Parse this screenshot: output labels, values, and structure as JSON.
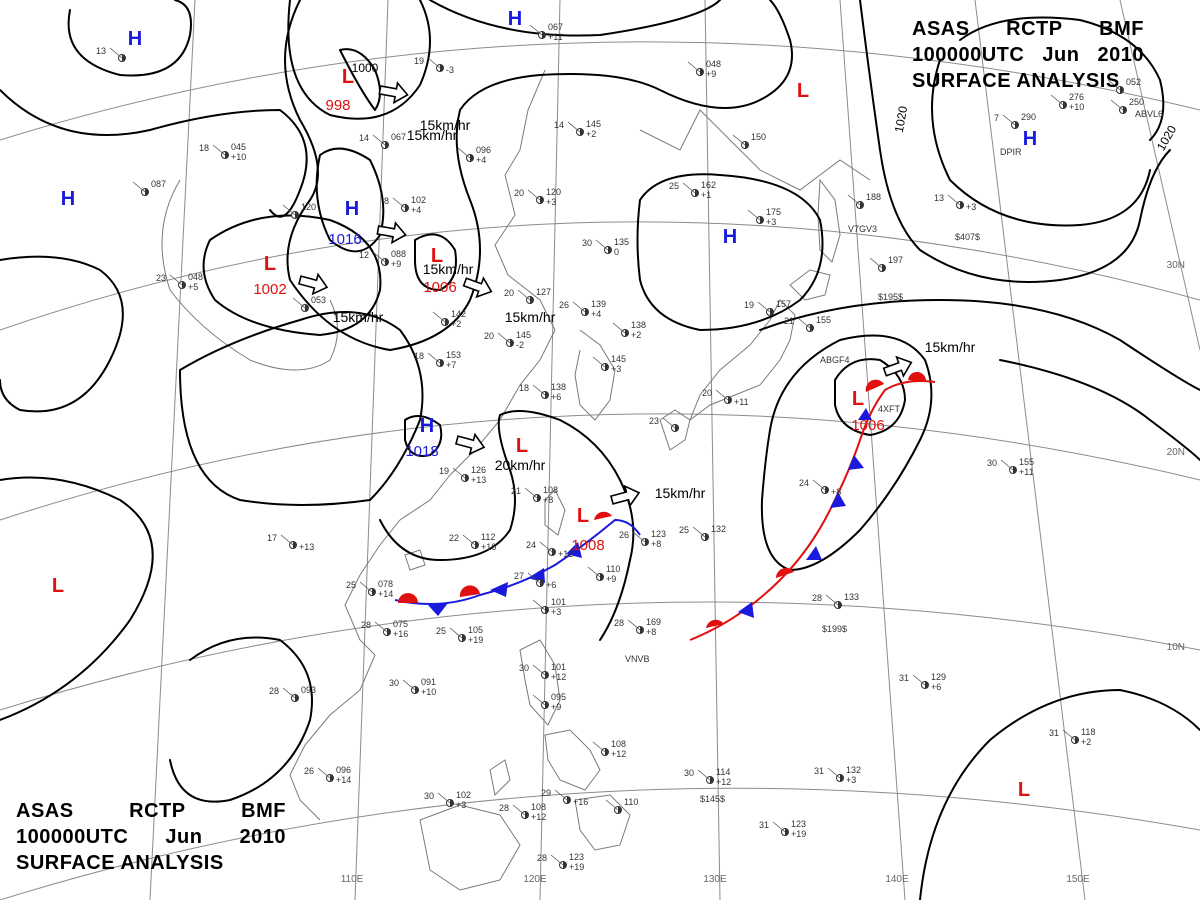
{
  "header": {
    "line1": [
      "ASAS",
      "RCTP",
      "BMF"
    ],
    "line2": [
      "100000UTC",
      "Jun",
      "2010"
    ],
    "line3": "SURFACE ANALYSIS"
  },
  "colors": {
    "high": "#1a1adc",
    "low": "#e01010",
    "warm_front": "#e01010",
    "cold_front": "#1a1adc",
    "isobar": "#000000",
    "coast": "#777777",
    "grid": "#888888"
  },
  "longitude_labels": [
    "110E",
    "120E",
    "130E",
    "140E",
    "150E"
  ],
  "latitude_labels": [
    "30N",
    "20N",
    "10N"
  ],
  "pressure_centers": [
    {
      "type": "H",
      "value": ""
    },
    {
      "type": "H",
      "value": ""
    },
    {
      "type": "H",
      "value": ""
    },
    {
      "type": "H",
      "value": "1016"
    },
    {
      "type": "H",
      "value": ""
    },
    {
      "type": "H",
      "value": ""
    },
    {
      "type": "H",
      "value": "1018"
    },
    {
      "type": "L",
      "value": "998"
    },
    {
      "type": "L",
      "value": "1002"
    },
    {
      "type": "L",
      "value": "1006"
    },
    {
      "type": "L",
      "value": ""
    },
    {
      "type": "L",
      "value": ""
    },
    {
      "type": "L",
      "value": "1006"
    },
    {
      "type": "L",
      "value": "1008"
    },
    {
      "type": "L",
      "value": ""
    },
    {
      "type": "L",
      "value": ""
    }
  ],
  "isobar_labels": [
    "1000",
    "1020",
    "1020"
  ],
  "motion_arrows": [
    {
      "label": "15km/hr"
    },
    {
      "label": "15km/hr"
    },
    {
      "label": ""
    },
    {
      "label": "15km/hr"
    },
    {
      "label": "15km/hr"
    },
    {
      "label": "20km/hr"
    },
    {
      "label": "15km/hr"
    },
    {
      "label": "15km/hr"
    },
    {
      "label": "15km/hr"
    }
  ],
  "stations": [
    {
      "t": "13",
      "p": "",
      "d": ""
    },
    {
      "t": "18",
      "p": "045",
      "d": "+10"
    },
    {
      "t": "",
      "p": "087",
      "d": ""
    },
    {
      "t": "23",
      "p": "048",
      "d": "+5"
    },
    {
      "t": "19",
      "p": "",
      "d": "-3"
    },
    {
      "t": "14",
      "p": "067",
      "d": ""
    },
    {
      "t": "",
      "p": "096",
      "d": "+4"
    },
    {
      "t": "",
      "p": "067",
      "d": "+11"
    },
    {
      "t": "14",
      "p": "145",
      "d": "+2"
    },
    {
      "t": "",
      "p": "048",
      "d": "+9"
    },
    {
      "t": "8",
      "p": "102",
      "d": "+4"
    },
    {
      "t": "12",
      "p": "088",
      "d": "+9"
    },
    {
      "t": "",
      "p": "120",
      "d": ""
    },
    {
      "t": "",
      "p": "053",
      "d": ""
    },
    {
      "t": "20",
      "p": "120",
      "d": "+3"
    },
    {
      "t": "25",
      "p": "162",
      "d": "+1"
    },
    {
      "t": "",
      "p": "175",
      "d": "+3"
    },
    {
      "t": "30",
      "p": "135",
      "d": "0"
    },
    {
      "t": "20",
      "p": "127",
      "d": ""
    },
    {
      "t": "26",
      "p": "139",
      "d": "+4"
    },
    {
      "t": "",
      "p": "142",
      "d": "+2"
    },
    {
      "t": "20",
      "p": "145",
      "d": "-2"
    },
    {
      "t": "18",
      "p": "153",
      "d": "+7"
    },
    {
      "t": "",
      "p": "138",
      "d": "+2"
    },
    {
      "t": "",
      "p": "145",
      "d": "+3"
    },
    {
      "t": "19",
      "p": "157",
      "d": ""
    },
    {
      "t": "18",
      "p": "138",
      "d": "+6"
    },
    {
      "t": "23",
      "p": "",
      "d": ""
    },
    {
      "t": "19",
      "p": "126",
      "d": "+13"
    },
    {
      "t": "21",
      "p": "108",
      "d": "+8"
    },
    {
      "t": "22",
      "p": "112",
      "d": "+16"
    },
    {
      "t": "17",
      "p": "",
      "d": "+13"
    },
    {
      "t": "25",
      "p": "078",
      "d": "+14"
    },
    {
      "t": "28",
      "p": "075",
      "d": "+16"
    },
    {
      "t": "25",
      "p": "105",
      "d": "+19"
    },
    {
      "t": "24",
      "p": "",
      "d": "+12"
    },
    {
      "t": "27",
      "p": "",
      "d": "+6"
    },
    {
      "t": "",
      "p": "110",
      "d": "+9"
    },
    {
      "t": "",
      "p": "101",
      "d": "+3"
    },
    {
      "t": "26",
      "p": "123",
      "d": "+8"
    },
    {
      "t": "25",
      "p": "132",
      "d": ""
    },
    {
      "t": "28",
      "p": "169",
      "d": "+8"
    },
    {
      "t": "28",
      "p": "133",
      "d": ""
    },
    {
      "t": "30",
      "p": "101",
      "d": "+12"
    },
    {
      "t": "",
      "p": "095",
      "d": "+9"
    },
    {
      "t": "30",
      "p": "091",
      "d": "+10"
    },
    {
      "t": "28",
      "p": "093",
      "d": ""
    },
    {
      "t": "26",
      "p": "096",
      "d": "+14"
    },
    {
      "t": "30",
      "p": "102",
      "d": "+3"
    },
    {
      "t": "28",
      "p": "108",
      "d": "+12"
    },
    {
      "t": "29",
      "p": "",
      "d": "+16"
    },
    {
      "t": "",
      "p": "108",
      "d": "+12"
    },
    {
      "t": "30",
      "p": "114",
      "d": "+12"
    },
    {
      "t": "",
      "p": "110",
      "d": ""
    },
    {
      "t": "28",
      "p": "123",
      "d": "+19"
    },
    {
      "t": "31",
      "p": "132",
      "d": "+3"
    },
    {
      "t": "31",
      "p": "123",
      "d": "+19"
    },
    {
      "t": "31",
      "p": "129",
      "d": "+6"
    },
    {
      "t": "31",
      "p": "118",
      "d": "+2"
    },
    {
      "t": "30",
      "p": "155",
      "d": "+11"
    },
    {
      "t": "24",
      "p": "",
      "d": "+8"
    },
    {
      "t": "21",
      "p": "155",
      "d": ""
    },
    {
      "t": "20",
      "p": "",
      "d": "+11"
    },
    {
      "t": "",
      "p": "197",
      "d": ""
    },
    {
      "t": "",
      "p": "188",
      "d": ""
    },
    {
      "t": "",
      "p": "150",
      "d": ""
    },
    {
      "t": "",
      "p": "052",
      "d": ""
    },
    {
      "t": "13",
      "p": "",
      "d": "+3"
    },
    {
      "t": "7",
      "p": "290",
      "d": ""
    },
    {
      "t": "",
      "p": "276",
      "d": "+10"
    },
    {
      "t": "",
      "p": "250",
      "d": ""
    }
  ],
  "station_codes": [
    "VNVB",
    "ABGF4",
    "4XFT",
    "V7GV3",
    "$407$",
    "$195$",
    "$145$",
    "$199$",
    "DPIR",
    "ABVL6"
  ]
}
